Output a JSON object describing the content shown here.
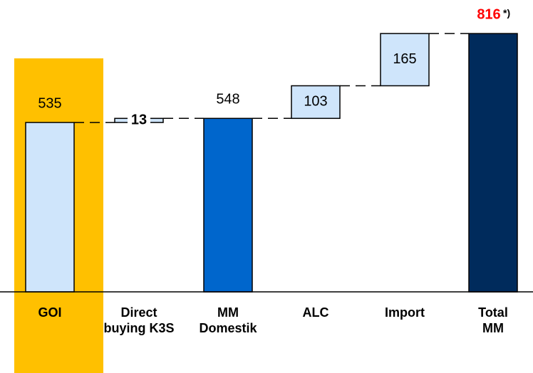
{
  "chart_data": {
    "type": "waterfall",
    "categories": [
      "GOI",
      "Direct buying K3S",
      "MM Domestik",
      "ALC",
      "Import",
      "Total MM"
    ],
    "values": [
      535,
      13,
      548,
      103,
      165,
      816
    ],
    "measure": [
      "total",
      "relative",
      "total",
      "relative",
      "relative",
      "total"
    ],
    "colors": [
      "#cfe5fb",
      "#cfe5fb",
      "#0066cc",
      "#cfe5fb",
      "#cfe5fb",
      "#002b5c"
    ],
    "label_colors": [
      "#000000",
      "#000000",
      "#000000",
      "#000000",
      "#000000",
      "#ff0000"
    ],
    "label_bold": [
      false,
      true,
      false,
      false,
      false,
      true
    ],
    "highlight_index": 0,
    "highlight_color": "#ffc000",
    "annotation": "*)",
    "ylim": [
      0,
      850
    ]
  }
}
